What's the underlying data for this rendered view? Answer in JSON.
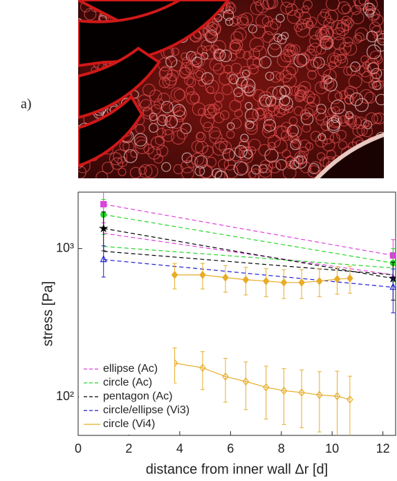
{
  "panel_label": "a)",
  "chart_data": {
    "type": "line",
    "xlabel": "distance from inner wall Δr [d]",
    "ylabel": "stress [Pa]",
    "xlim": [
      0,
      12.5
    ],
    "xticks": [
      0,
      2,
      4,
      6,
      8,
      10,
      12
    ],
    "ylim": [
      55,
      2400
    ],
    "yticks": [
      {
        "value": 100,
        "label": "10²"
      },
      {
        "value": 1000,
        "label": "10³"
      }
    ],
    "log_y": true,
    "legend": "lower left",
    "series": [
      {
        "name": "ellipse (Ac)",
        "color": "#e03ce0",
        "style": "dashed",
        "marker": "square",
        "filled": true,
        "x": [
          1,
          12.4
        ],
        "values": [
          1990,
          898
        ],
        "errors": [
          500,
          250
        ]
      },
      {
        "name": "ellipse (Ac)",
        "color": "#e03ce0",
        "style": "dashed",
        "x": [
          1,
          12.4
        ],
        "values": [
          1267,
          665
        ]
      },
      {
        "name": "circle (Ac)",
        "color": "#22d622",
        "style": "dashed",
        "marker": "circle",
        "filled": true,
        "x": [
          1,
          12.4
        ],
        "values": [
          1694,
          798
        ],
        "errors": [
          450,
          200
        ]
      },
      {
        "name": "circle (Ac)",
        "color": "#22d622",
        "style": "dashed",
        "x": [
          1,
          12.4
        ],
        "values": [
          1033,
          740
        ]
      },
      {
        "name": "pentagon (Ac)",
        "color": "#000000",
        "style": "dashed",
        "marker": "star",
        "filled": true,
        "x": [
          1,
          12.4
        ],
        "values": [
          1366,
          629
        ],
        "errors": [
          400,
          180
        ]
      },
      {
        "name": "pentagon (Ac)",
        "color": "#000000",
        "style": "dashed",
        "x": [
          1,
          12.4
        ],
        "values": [
          958,
          665
        ]
      },
      {
        "name": "circle/ellipse (Vi3)",
        "color": "#1a1ad6",
        "style": "dashed",
        "marker": "triangle",
        "filled": false,
        "x": [
          1,
          12.4
        ],
        "values": [
          842,
          548
        ],
        "errors": [
          200,
          180
        ]
      },
      {
        "name": "circle (Vi4)",
        "color": "#e8ac28",
        "style": "solid",
        "marker": "diamond",
        "filled": true,
        "x": [
          3.8,
          4.9,
          5.8,
          6.6,
          7.4,
          8.1,
          8.8,
          9.5,
          10.2,
          10.7
        ],
        "values": [
          664,
          664,
          637,
          616,
          603,
          590,
          590,
          603,
          622,
          630
        ],
        "errors": [
          130,
          130,
          130,
          130,
          130,
          130,
          130,
          130,
          130,
          130
        ]
      },
      {
        "name": "circle (Vi4)",
        "color": "#e8ac28",
        "style": "solid",
        "marker": "diamond",
        "filled": false,
        "x": [
          3.8,
          4.9,
          5.8,
          6.6,
          7.4,
          8.1,
          8.8,
          9.5,
          10.2,
          10.7
        ],
        "values": [
          169,
          157,
          137,
          127,
          116,
          110,
          107,
          103,
          101,
          96
        ],
        "errors": [
          45,
          45,
          45,
          45,
          45,
          45,
          45,
          45,
          48,
          42
        ]
      }
    ]
  }
}
